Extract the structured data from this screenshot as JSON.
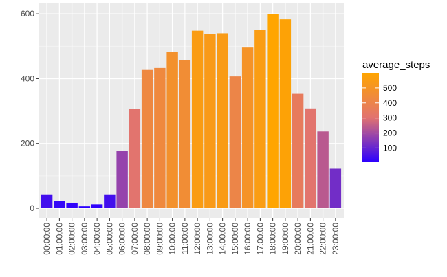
{
  "chart_data": {
    "type": "bar",
    "categories": [
      "00:00:00",
      "01:00:00",
      "02:00:00",
      "03:00:00",
      "04:00:00",
      "05:00:00",
      "06:00:00",
      "07:00:00",
      "08:00:00",
      "09:00:00",
      "10:00:00",
      "11:00:00",
      "12:00:00",
      "13:00:00",
      "14:00:00",
      "15:00:00",
      "16:00:00",
      "17:00:00",
      "18:00:00",
      "19:00:00",
      "20:00:00",
      "21:00:00",
      "22:00:00",
      "23:00:00"
    ],
    "values": [
      43,
      23,
      17,
      6,
      12,
      43,
      178,
      306,
      427,
      433,
      482,
      457,
      548,
      537,
      540,
      407,
      496,
      550,
      600,
      583,
      353,
      308,
      237,
      122
    ],
    "title": "",
    "xlabel": "",
    "ylabel": "",
    "ylim": [
      0,
      630
    ],
    "yticks": [
      0,
      200,
      400,
      600
    ],
    "grid": true,
    "fill_variable": "average_steps",
    "color_scale": {
      "low": "#2b00ff",
      "mid": "#e2736f",
      "high": "#ffa500",
      "min": 6,
      "max": 600
    },
    "legend": {
      "title": "average_steps",
      "position": "right",
      "ticks": [
        100,
        200,
        300,
        400,
        500
      ]
    }
  }
}
